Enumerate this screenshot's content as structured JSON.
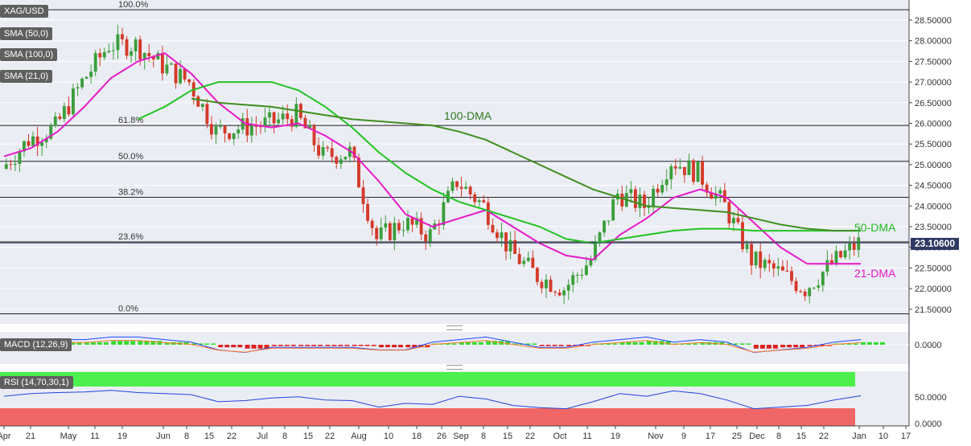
{
  "legend": {
    "symbol": "XAG/USD",
    "sma50": "SMA (50,0)",
    "sma100": "SMA (100,0)",
    "sma21": "SMA (21,0)",
    "macd": "MACD (12,26,9)",
    "rsi": "RSI (14,70,30,1)"
  },
  "last_price": "23.10600",
  "annotations": {
    "dma100": "100-DMA",
    "dma50": "50-DMA",
    "dma21": "21-DMA"
  },
  "fib_levels": [
    {
      "label": "100.0%",
      "value": 28.75
    },
    {
      "label": "61.8%",
      "value": 25.95
    },
    {
      "label": "50.0%",
      "value": 25.08
    },
    {
      "label": "38.2%",
      "value": 24.21
    },
    {
      "label": "23.6%",
      "value": 23.13
    },
    {
      "label": "0.0%",
      "value": 21.39
    }
  ],
  "price_axis": [
    "28.50000",
    "28.00000",
    "27.50000",
    "27.00000",
    "26.50000",
    "26.00000",
    "25.50000",
    "25.00000",
    "24.50000",
    "24.00000",
    "23.50000",
    "23.00000",
    "22.50000",
    "22.00000",
    "21.50000"
  ],
  "macd_axis": [
    "0.0000"
  ],
  "rsi_axis": [
    "50.0000",
    "0.0000"
  ],
  "x_axis": [
    "Apr",
    "21",
    "May",
    "11",
    "19",
    "Jun",
    "8",
    "15",
    "22",
    "Jul",
    "8",
    "15",
    "22",
    "Aug",
    "10",
    "18",
    "26",
    "Sep",
    "8",
    "15",
    "22",
    "Oct",
    "11",
    "19",
    "Nov",
    "9",
    "17",
    "25",
    "Dec",
    "8",
    "15",
    "22",
    "Jan",
    "10",
    "17"
  ],
  "colors": {
    "sma50": "#22c322",
    "sma100": "#3f8f1f",
    "sma21": "#e619c8",
    "up": "#3b9e3b",
    "down": "#d43a2a",
    "macd": "#1f46ff",
    "signal": "#ff7a2a",
    "rsi_line": "#2244dd",
    "overbought": "#4cf04c",
    "oversold": "#f06666"
  },
  "chart_data": {
    "type": "line",
    "title": "XAG/USD",
    "ylim": [
      21.3,
      28.85
    ],
    "x": [
      "Apr",
      "21",
      "May",
      "11",
      "19",
      "Jun",
      "8",
      "15",
      "22",
      "Jul",
      "8",
      "15",
      "22",
      "Aug",
      "10",
      "18",
      "26",
      "Sep",
      "8",
      "15",
      "22",
      "Oct",
      "11",
      "19",
      "Nov",
      "9",
      "17",
      "25",
      "Dec",
      "8",
      "15",
      "22",
      "Jan"
    ],
    "series": [
      {
        "name": "XAG/USD",
        "values": [
          24.9,
          25.6,
          25.9,
          27.0,
          27.9,
          27.9,
          27.4,
          27.0,
          25.8,
          25.9,
          26.0,
          26.2,
          25.2,
          25.3,
          23.2,
          23.6,
          23.3,
          24.6,
          24.0,
          22.9,
          22.3,
          22.0,
          22.7,
          24.3,
          24.0,
          25.1,
          24.8,
          24.0,
          22.7,
          22.4,
          22.0,
          22.6,
          23.1
        ]
      },
      {
        "name": "SMA (21,0)",
        "values": [
          25.2,
          25.4,
          25.8,
          26.4,
          27.1,
          27.5,
          27.7,
          27.2,
          26.5,
          26.0,
          25.9,
          26.0,
          25.7,
          25.3,
          24.6,
          23.8,
          23.5,
          23.7,
          23.9,
          23.5,
          23.1,
          22.8,
          22.7,
          23.3,
          23.7,
          24.2,
          24.4,
          24.2,
          23.6,
          23.0,
          22.6,
          22.6,
          22.6
        ]
      },
      {
        "name": "SMA (50,0)",
        "values": [
          null,
          null,
          null,
          null,
          null,
          26.1,
          26.4,
          26.8,
          27.0,
          27.0,
          27.0,
          26.8,
          26.4,
          25.9,
          25.3,
          24.8,
          24.4,
          24.1,
          23.9,
          23.7,
          23.5,
          23.2,
          23.1,
          23.2,
          23.3,
          23.4,
          23.45,
          23.45,
          23.4,
          23.4,
          23.4,
          23.4,
          23.4
        ]
      },
      {
        "name": "SMA (100,0)",
        "values": [
          null,
          null,
          null,
          null,
          null,
          null,
          null,
          26.6,
          26.5,
          26.45,
          26.4,
          26.3,
          26.2,
          26.1,
          26.05,
          26.0,
          25.95,
          25.8,
          25.6,
          25.3,
          25.0,
          24.7,
          24.4,
          24.2,
          24.0,
          23.95,
          23.9,
          23.85,
          23.7,
          23.55,
          23.45,
          23.4,
          23.4
        ]
      }
    ],
    "annotations": [
      "100-DMA",
      "50-DMA",
      "21-DMA"
    ],
    "last": 23.106
  }
}
